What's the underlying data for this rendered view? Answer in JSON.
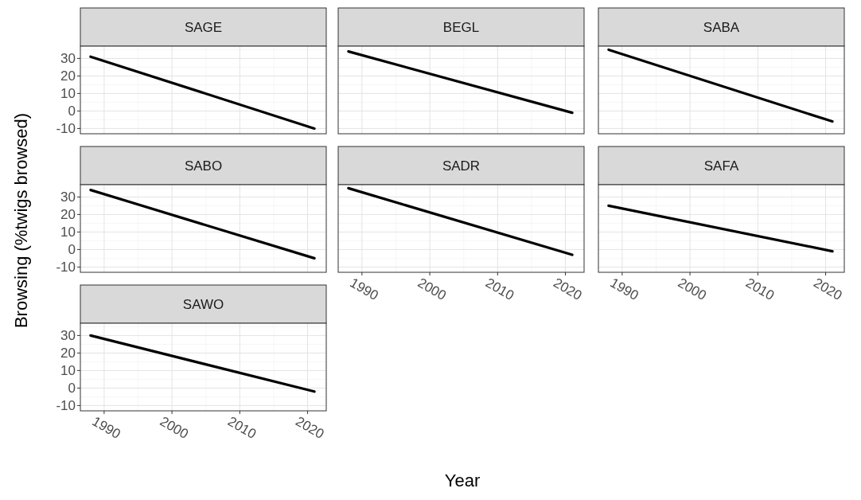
{
  "chart_data": [
    {
      "type": "line",
      "title": "SAGE",
      "series": [
        {
          "color": "#000000",
          "x": [
            "1988",
            "2021"
          ],
          "values": [
            31,
            -10
          ]
        }
      ],
      "xlim": [
        "1986-07",
        "2022-10"
      ],
      "ylim": [
        -13,
        37
      ],
      "xticks": [
        "1990",
        "2000",
        "2010",
        "2020"
      ],
      "yticks": [
        -10,
        0,
        10,
        20,
        30
      ],
      "grid": true,
      "tick_labels": "y"
    },
    {
      "type": "line",
      "title": "BEGL",
      "series": [
        {
          "color": "#000000",
          "x": [
            "1988",
            "2021"
          ],
          "values": [
            34,
            -1
          ]
        }
      ],
      "xlim": [
        "1986-07",
        "2022-10"
      ],
      "ylim": [
        -13,
        37
      ],
      "xticks": [
        "1990",
        "2000",
        "2010",
        "2020"
      ],
      "yticks": [
        -10,
        0,
        10,
        20,
        30
      ],
      "grid": true,
      "tick_labels": false
    },
    {
      "type": "line",
      "title": "SABA",
      "series": [
        {
          "color": "#000000",
          "x": [
            "1988",
            "2021"
          ],
          "values": [
            35,
            -6
          ]
        }
      ],
      "xlim": [
        "1986-07",
        "2022-10"
      ],
      "ylim": [
        -13,
        37
      ],
      "xticks": [
        "1990",
        "2000",
        "2010",
        "2020"
      ],
      "yticks": [
        -10,
        0,
        10,
        20,
        30
      ],
      "grid": true,
      "tick_labels": false
    },
    {
      "type": "line",
      "title": "SABO",
      "ylabel": "Browsing (%twigs browsed)",
      "series": [
        {
          "color": "#000000",
          "x": [
            "1988",
            "2021"
          ],
          "values": [
            34,
            -5
          ]
        }
      ],
      "xlim": [
        "1986-07",
        "2022-10"
      ],
      "ylim": [
        -13,
        37
      ],
      "xticks": [
        "1990",
        "2000",
        "2010",
        "2020"
      ],
      "yticks": [
        -10,
        0,
        10,
        20,
        30
      ],
      "grid": true,
      "tick_labels": "y"
    },
    {
      "type": "line",
      "title": "SADR",
      "xlabel": "Year",
      "series": [
        {
          "color": "#000000",
          "x": [
            "1988",
            "2021"
          ],
          "values": [
            35,
            -3
          ]
        }
      ],
      "xlim": [
        "1986-07",
        "2022-10"
      ],
      "ylim": [
        -13,
        37
      ],
      "xticks": [
        "1990",
        "2000",
        "2010",
        "2020"
      ],
      "yticks": [
        -10,
        0,
        10,
        20,
        30
      ],
      "grid": true,
      "tick_labels": "x"
    },
    {
      "type": "line",
      "title": "SAFA",
      "series": [
        {
          "color": "#000000",
          "x": [
            "1988",
            "2021"
          ],
          "values": [
            25,
            -1
          ]
        }
      ],
      "xlim": [
        "1986-07",
        "2022-10"
      ],
      "ylim": [
        -13,
        37
      ],
      "xticks": [
        "1990",
        "2000",
        "2010",
        "2020"
      ],
      "yticks": [
        -10,
        0,
        10,
        20,
        30
      ],
      "grid": true,
      "tick_labels": "x"
    },
    {
      "type": "line",
      "title": "SAWO",
      "series": [
        {
          "color": "#000000",
          "x": [
            "1988",
            "2021"
          ],
          "values": [
            30,
            -2
          ]
        }
      ],
      "xlim": [
        "1986-07",
        "2022-10"
      ],
      "ylim": [
        -13,
        37
      ],
      "xticks": [
        "1990",
        "2000",
        "2010",
        "2020"
      ],
      "yticks": [
        -10,
        0,
        10,
        20,
        30
      ],
      "grid": true
    }
  ]
}
